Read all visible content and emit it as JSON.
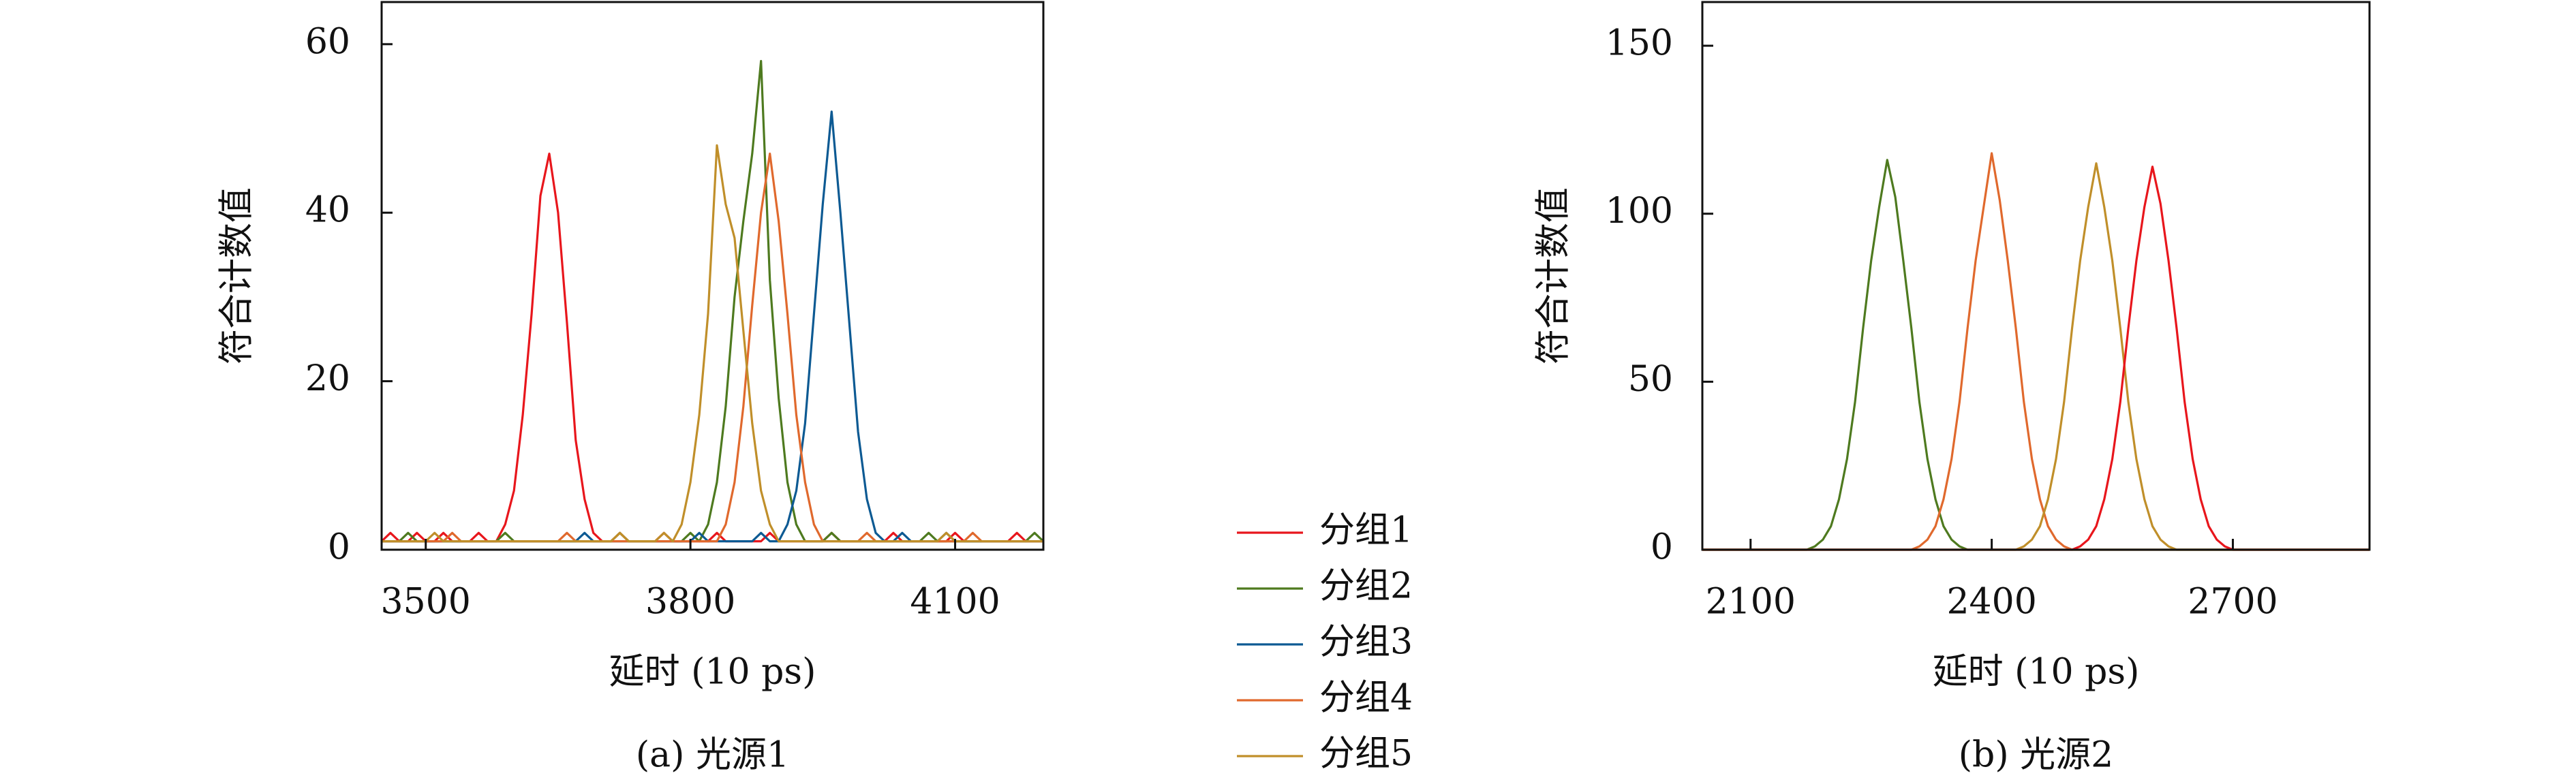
{
  "chart_data": [
    {
      "type": "line",
      "caption": "(a) 光源1",
      "x_label": "延时 (10 ps)",
      "y_label": "符合计数值",
      "x": [
        3450,
        3460,
        3470,
        3480,
        3490,
        3500,
        3510,
        3520,
        3530,
        3540,
        3550,
        3560,
        3570,
        3580,
        3590,
        3600,
        3610,
        3620,
        3630,
        3640,
        3650,
        3660,
        3670,
        3680,
        3690,
        3700,
        3710,
        3720,
        3730,
        3740,
        3750,
        3760,
        3770,
        3780,
        3790,
        3800,
        3810,
        3820,
        3830,
        3840,
        3850,
        3860,
        3870,
        3880,
        3890,
        3900,
        3910,
        3920,
        3930,
        3940,
        3950,
        3960,
        3970,
        3980,
        3990,
        4000,
        4010,
        4020,
        4030,
        4040,
        4050,
        4060,
        4070,
        4080,
        4090,
        4100,
        4110,
        4120,
        4130,
        4140,
        4150,
        4160,
        4170,
        4180,
        4190,
        4200
      ],
      "xlim": [
        3450,
        4200
      ],
      "xticks": [
        3500,
        3800,
        4100
      ],
      "ylim": [
        0,
        65
      ],
      "yticks": [
        0,
        20,
        40,
        60
      ],
      "series": [
        {
          "name": "分组1",
          "color": "#e8161c",
          "values": [
            1,
            2,
            1,
            1,
            2,
            1,
            1,
            2,
            1,
            1,
            1,
            2,
            1,
            1,
            3,
            7,
            16,
            28,
            42,
            47,
            40,
            27,
            13,
            6,
            2,
            1,
            1,
            2,
            1,
            1,
            1,
            1,
            2,
            1,
            1,
            1,
            1,
            1,
            2,
            1,
            1,
            1,
            1,
            1,
            2,
            1,
            1,
            1,
            1,
            1,
            1,
            2,
            1,
            1,
            1,
            1,
            1,
            1,
            2,
            1,
            1,
            1,
            1,
            1,
            1,
            2,
            1,
            1,
            1,
            1,
            1,
            1,
            2,
            1,
            1,
            1
          ]
        },
        {
          "name": "分组2",
          "color": "#4e7a1f",
          "values": [
            1,
            1,
            1,
            2,
            1,
            1,
            1,
            1,
            1,
            1,
            1,
            1,
            1,
            1,
            2,
            1,
            1,
            1,
            1,
            1,
            1,
            1,
            1,
            1,
            1,
            1,
            1,
            2,
            1,
            1,
            1,
            1,
            1,
            1,
            1,
            2,
            1,
            3,
            8,
            17,
            30,
            39,
            47,
            58,
            32,
            18,
            8,
            3,
            1,
            1,
            1,
            2,
            1,
            1,
            1,
            1,
            1,
            1,
            1,
            1,
            1,
            1,
            2,
            1,
            1,
            1,
            1,
            1,
            1,
            1,
            1,
            1,
            1,
            1,
            2,
            1
          ]
        },
        {
          "name": "分组3",
          "color": "#0d5a93",
          "values": [
            1,
            1,
            1,
            1,
            1,
            1,
            1,
            1,
            1,
            1,
            1,
            1,
            1,
            1,
            1,
            1,
            1,
            1,
            1,
            1,
            1,
            1,
            1,
            2,
            1,
            1,
            1,
            1,
            1,
            1,
            1,
            1,
            1,
            1,
            1,
            1,
            2,
            1,
            1,
            1,
            1,
            1,
            1,
            2,
            1,
            1,
            3,
            7,
            15,
            28,
            41,
            52,
            40,
            27,
            14,
            6,
            2,
            1,
            1,
            2,
            1,
            1,
            1,
            1,
            2,
            1,
            1,
            1,
            1,
            1,
            1,
            1,
            1,
            1,
            1,
            1
          ]
        },
        {
          "name": "分组4",
          "color": "#e0692d",
          "values": [
            1,
            1,
            1,
            1,
            1,
            1,
            1,
            1,
            2,
            1,
            1,
            1,
            1,
            1,
            1,
            1,
            1,
            1,
            1,
            1,
            1,
            2,
            1,
            1,
            1,
            1,
            1,
            1,
            1,
            1,
            1,
            1,
            1,
            1,
            1,
            1,
            1,
            1,
            1,
            3,
            8,
            17,
            29,
            40,
            47,
            39,
            28,
            16,
            8,
            3,
            1,
            1,
            1,
            1,
            1,
            2,
            1,
            1,
            1,
            1,
            1,
            1,
            1,
            1,
            1,
            1,
            1,
            2,
            1,
            1,
            1,
            1,
            1,
            1,
            1,
            1
          ]
        },
        {
          "name": "分组5",
          "color": "#c08f2a",
          "values": [
            1,
            1,
            1,
            1,
            1,
            1,
            2,
            1,
            1,
            1,
            1,
            1,
            1,
            1,
            1,
            1,
            1,
            1,
            1,
            1,
            1,
            1,
            1,
            1,
            1,
            1,
            1,
            2,
            1,
            1,
            1,
            1,
            2,
            1,
            3,
            8,
            16,
            28,
            48,
            41,
            37,
            26,
            15,
            7,
            3,
            1,
            1,
            1,
            1,
            1,
            1,
            1,
            1,
            1,
            1,
            1,
            1,
            1,
            1,
            1,
            1,
            1,
            1,
            1,
            2,
            1,
            1,
            1,
            1,
            1,
            1,
            1,
            1,
            1,
            1,
            1
          ]
        }
      ]
    },
    {
      "type": "line",
      "caption": "(b) 光源2",
      "x_label": "延时 (10 ps)",
      "y_label": "符合计数值",
      "x": [
        2040,
        2050,
        2060,
        2070,
        2080,
        2090,
        2100,
        2110,
        2120,
        2130,
        2140,
        2150,
        2160,
        2170,
        2180,
        2190,
        2200,
        2210,
        2220,
        2230,
        2240,
        2250,
        2260,
        2270,
        2280,
        2290,
        2300,
        2310,
        2320,
        2330,
        2340,
        2350,
        2360,
        2370,
        2380,
        2390,
        2400,
        2410,
        2420,
        2430,
        2440,
        2450,
        2460,
        2470,
        2480,
        2490,
        2500,
        2510,
        2520,
        2530,
        2540,
        2550,
        2560,
        2570,
        2580,
        2590,
        2600,
        2610,
        2620,
        2630,
        2640,
        2650,
        2660,
        2670,
        2680,
        2690,
        2700,
        2710,
        2720,
        2730,
        2740,
        2750,
        2760,
        2770,
        2780,
        2790,
        2800,
        2810,
        2820,
        2830,
        2840,
        2850,
        2860,
        2870
      ],
      "xlim": [
        2040,
        2870
      ],
      "xticks": [
        2100,
        2400,
        2700
      ],
      "ylim": [
        0,
        163
      ],
      "yticks": [
        0,
        50,
        100,
        150
      ],
      "series": [
        {
          "color": "#4e7a1f",
          "values": [
            0,
            0,
            0,
            0,
            0,
            0,
            0,
            0,
            0,
            0,
            0,
            0,
            0,
            0,
            1,
            3,
            7,
            15,
            27,
            44,
            66,
            86,
            102,
            116,
            105,
            86,
            66,
            44,
            27,
            15,
            7,
            3,
            1,
            0,
            0,
            0,
            0,
            0,
            0,
            0,
            0,
            0,
            0,
            0,
            0,
            0,
            0,
            0,
            0,
            0,
            0,
            0,
            0,
            0,
            0,
            0,
            0,
            0,
            0,
            0,
            0,
            0,
            0,
            0,
            0,
            0,
            0,
            0,
            0,
            0,
            0,
            0,
            0,
            0,
            0,
            0,
            0,
            0,
            0,
            0,
            0,
            0,
            0,
            0
          ]
        },
        {
          "color": "#e0692d",
          "values": [
            0,
            0,
            0,
            0,
            0,
            0,
            0,
            0,
            0,
            0,
            0,
            0,
            0,
            0,
            0,
            0,
            0,
            0,
            0,
            0,
            0,
            0,
            0,
            0,
            0,
            0,
            0,
            1,
            3,
            7,
            15,
            27,
            44,
            66,
            86,
            102,
            118,
            104,
            86,
            66,
            44,
            27,
            15,
            7,
            3,
            1,
            0,
            0,
            0,
            0,
            0,
            0,
            0,
            0,
            0,
            0,
            0,
            0,
            0,
            0,
            0,
            0,
            0,
            0,
            0,
            0,
            0,
            0,
            0,
            0,
            0,
            0,
            0,
            0,
            0,
            0,
            0,
            0,
            0,
            0,
            0,
            0,
            0,
            0
          ]
        },
        {
          "color": "#c08f2a",
          "values": [
            0,
            0,
            0,
            0,
            0,
            0,
            0,
            0,
            0,
            0,
            0,
            0,
            0,
            0,
            0,
            0,
            0,
            0,
            0,
            0,
            0,
            0,
            0,
            0,
            0,
            0,
            0,
            0,
            0,
            0,
            0,
            0,
            0,
            0,
            0,
            0,
            0,
            0,
            0,
            0,
            1,
            3,
            7,
            15,
            27,
            44,
            66,
            86,
            102,
            115,
            102,
            86,
            66,
            44,
            27,
            15,
            7,
            3,
            1,
            0,
            0,
            0,
            0,
            0,
            0,
            0,
            0,
            0,
            0,
            0,
            0,
            0,
            0,
            0,
            0,
            0,
            0,
            0,
            0,
            0,
            0,
            0,
            0,
            0
          ]
        },
        {
          "color": "#e8161c",
          "values": [
            0,
            0,
            0,
            0,
            0,
            0,
            0,
            0,
            0,
            0,
            0,
            0,
            0,
            0,
            0,
            0,
            0,
            0,
            0,
            0,
            0,
            0,
            0,
            0,
            0,
            0,
            0,
            0,
            0,
            0,
            0,
            0,
            0,
            0,
            0,
            0,
            0,
            0,
            0,
            0,
            0,
            0,
            0,
            0,
            0,
            0,
            0,
            1,
            3,
            7,
            15,
            27,
            44,
            66,
            86,
            102,
            114,
            103,
            86,
            66,
            44,
            27,
            15,
            7,
            3,
            1,
            0,
            0,
            0,
            0,
            0,
            0,
            0,
            0,
            0,
            0,
            0,
            0,
            0,
            0,
            0,
            0,
            0,
            0
          ]
        }
      ]
    }
  ]
}
